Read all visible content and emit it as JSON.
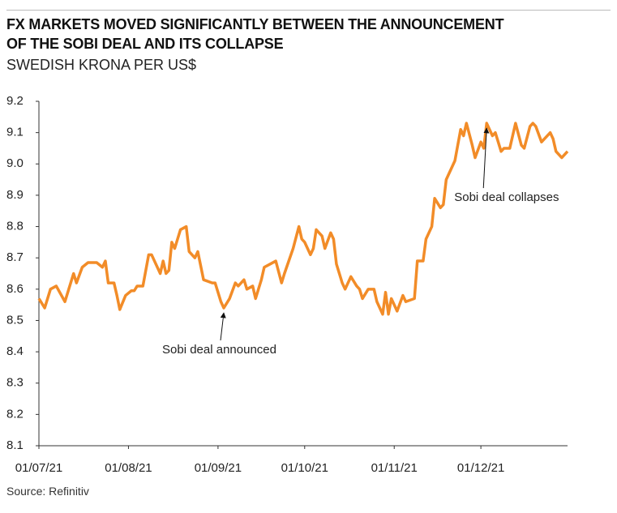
{
  "chart_data": {
    "type": "line",
    "title": "FX MARKETS MOVED SIGNIFICANTLY BETWEEN THE ANNOUNCEMENT\nOF THE SOBI DEAL AND ITS COLLAPSE",
    "subtitle": "SWEDISH KRONA PER US$",
    "source": "Source: Refinitiv",
    "xlim": [
      "2021-07-01",
      "2021-12-31"
    ],
    "xticks": [
      {
        "value": "2021-07-01",
        "label": "01/07/21"
      },
      {
        "value": "2021-08-01",
        "label": "01/08/21"
      },
      {
        "value": "2021-09-01",
        "label": "01/09/21"
      },
      {
        "value": "2021-10-01",
        "label": "01/10/21"
      },
      {
        "value": "2021-11-01",
        "label": "01/11/21"
      },
      {
        "value": "2021-12-01",
        "label": "01/12/21"
      }
    ],
    "ylim": [
      8.1,
      9.2
    ],
    "yticks": [
      8.1,
      8.2,
      8.3,
      8.4,
      8.5,
      8.6,
      8.7,
      8.8,
      8.9,
      {
        "value": 9,
        "label": "9.0"
      },
      9.1,
      9.2
    ],
    "x": [
      "2021-07-01",
      "2021-07-03",
      "2021-07-05",
      "2021-07-07",
      "2021-07-10",
      "2021-07-13",
      "2021-07-14",
      "2021-07-16",
      "2021-07-18",
      "2021-07-21",
      "2021-07-23",
      "2021-07-24",
      "2021-07-25",
      "2021-07-27",
      "2021-07-28",
      "2021-07-29",
      "2021-07-31",
      "2021-08-02",
      "2021-08-03",
      "2021-08-04",
      "2021-08-06",
      "2021-08-08",
      "2021-08-09",
      "2021-08-12",
      "2021-08-13",
      "2021-08-14",
      "2021-08-15",
      "2021-08-16",
      "2021-08-17",
      "2021-08-19",
      "2021-08-21",
      "2021-08-22",
      "2021-08-24",
      "2021-08-25",
      "2021-08-27",
      "2021-08-30",
      "2021-08-31",
      "2021-09-02",
      "2021-09-03",
      "2021-09-05",
      "2021-09-07",
      "2021-09-08",
      "2021-09-10",
      "2021-09-11",
      "2021-09-13",
      "2021-09-14",
      "2021-09-16",
      "2021-09-17",
      "2021-09-19",
      "2021-09-21",
      "2021-09-23",
      "2021-09-24",
      "2021-09-27",
      "2021-09-29",
      "2021-09-30",
      "2021-10-01",
      "2021-10-03",
      "2021-10-04",
      "2021-10-05",
      "2021-10-07",
      "2021-10-08",
      "2021-10-10",
      "2021-10-11",
      "2021-10-12",
      "2021-10-14",
      "2021-10-15",
      "2021-10-17",
      "2021-10-19",
      "2021-10-20",
      "2021-10-21",
      "2021-10-23",
      "2021-10-25",
      "2021-10-26",
      "2021-10-28",
      "2021-10-29",
      "2021-10-30",
      "2021-10-31",
      "2021-11-02",
      "2021-11-04",
      "2021-11-05",
      "2021-11-08",
      "2021-11-09",
      "2021-11-11",
      "2021-11-12",
      "2021-11-14",
      "2021-11-15",
      "2021-11-17",
      "2021-11-18",
      "2021-11-19",
      "2021-11-22",
      "2021-11-23",
      "2021-11-24",
      "2021-11-25",
      "2021-11-26",
      "2021-11-28",
      "2021-11-29",
      "2021-12-01",
      "2021-12-02",
      "2021-12-03",
      "2021-12-05",
      "2021-12-06",
      "2021-12-08",
      "2021-12-09",
      "2021-12-11",
      "2021-12-12",
      "2021-12-13",
      "2021-12-15",
      "2021-12-16",
      "2021-12-18",
      "2021-12-19",
      "2021-12-20",
      "2021-12-22",
      "2021-12-23",
      "2021-12-25",
      "2021-12-26",
      "2021-12-27",
      "2021-12-29",
      "2021-12-31"
    ],
    "series": [
      {
        "name": "SEK per USD",
        "color": "#f28c28",
        "values": [
          8.57,
          8.54,
          8.6,
          8.61,
          8.56,
          8.65,
          8.62,
          8.67,
          8.685,
          8.685,
          8.67,
          8.69,
          8.62,
          8.62,
          8.58,
          8.535,
          8.58,
          8.595,
          8.595,
          8.61,
          8.61,
          8.71,
          8.71,
          8.65,
          8.69,
          8.65,
          8.66,
          8.75,
          8.73,
          8.79,
          8.8,
          8.72,
          8.7,
          8.72,
          8.63,
          8.62,
          8.62,
          8.56,
          8.54,
          8.57,
          8.62,
          8.61,
          8.63,
          8.6,
          8.61,
          8.57,
          8.63,
          8.67,
          8.68,
          8.69,
          8.62,
          8.65,
          8.73,
          8.8,
          8.76,
          8.75,
          8.71,
          8.73,
          8.79,
          8.77,
          8.73,
          8.78,
          8.76,
          8.68,
          8.62,
          8.6,
          8.64,
          8.61,
          8.6,
          8.57,
          8.6,
          8.6,
          8.56,
          8.52,
          8.59,
          8.52,
          8.57,
          8.53,
          8.58,
          8.56,
          8.57,
          8.69,
          8.69,
          8.76,
          8.8,
          8.89,
          8.86,
          8.87,
          8.95,
          9.01,
          9.06,
          9.11,
          9.09,
          9.13,
          9.06,
          9.02,
          9.07,
          9.05,
          9.13,
          9.09,
          9.1,
          9.04,
          9.05,
          9.05,
          9.09,
          9.13,
          9.06,
          9.05,
          9.12,
          9.13,
          9.12,
          9.07,
          9.08,
          9.1,
          9.08,
          9.04,
          9.02,
          9.04
        ]
      }
    ],
    "annotations": [
      {
        "text": "Sobi deal announced",
        "x": "2021-09-03",
        "y": 8.54
      },
      {
        "text": "Sobi deal collapses",
        "x": "2021-12-03",
        "y": 9.13
      }
    ]
  }
}
